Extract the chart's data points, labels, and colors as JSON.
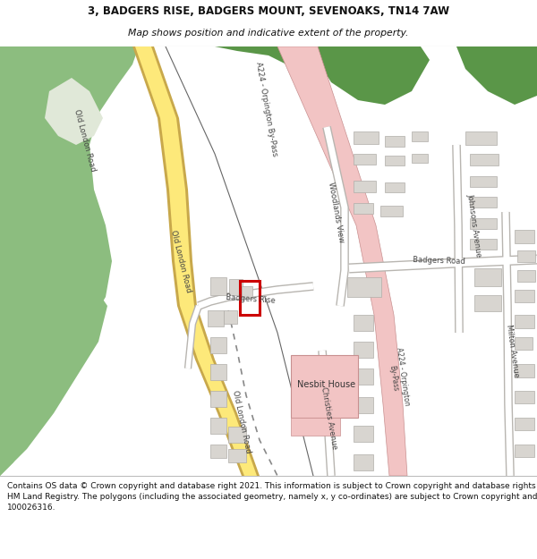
{
  "title_line1": "3, BADGERS RISE, BADGERS MOUNT, SEVENOAKS, TN14 7AW",
  "title_line2": "Map shows position and indicative extent of the property.",
  "footer_text_1": "Contains OS data © Crown copyright and database right 2021. This information is subject to Crown copyright and database rights 2023 and is reproduced with the permission of",
  "footer_text_2": "HM Land Registry. The polygons (including the associated geometry, namely x, y co-ordinates) are subject to Crown copyright and database rights 2023 Ordnance Survey 100026316.",
  "title_fontsize": 8.5,
  "subtitle_fontsize": 7.8,
  "footer_fontsize": 6.5,
  "bg_map_color": "#f0eeea",
  "green_light_color": "#8cbd7f",
  "green_dark_color": "#5a9648",
  "road_yellow_color": "#fde97a",
  "road_yellow_border": "#c8a84b",
  "byp_road_color": "#f2c4c4",
  "byp_border_color": "#c89090",
  "building_color": "#d8d5d0",
  "building_border": "#b0ada8",
  "nesbit_color": "#f2c4c4",
  "plot_border_color": "#cc0000",
  "label_color": "#444444",
  "white": "#ffffff",
  "thin_road_color": "#ffffff",
  "thin_road_border": "#c0bdb8"
}
